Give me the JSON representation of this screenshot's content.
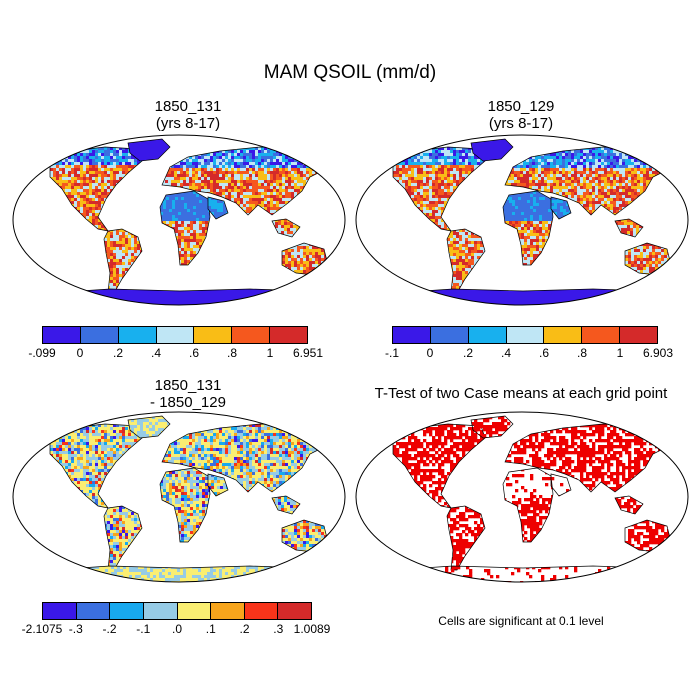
{
  "title": "MAM QSOIL (mm/d)",
  "panels": {
    "top_left": {
      "title_line1": "1850_131",
      "title_line2": "(yrs 8-17)"
    },
    "top_right": {
      "title_line1": "1850_129",
      "title_line2": "(yrs 8-17)"
    },
    "bottom_left": {
      "title_line1": "1850_131",
      "title_line2": "- 1850_129"
    },
    "bottom_right": {
      "title_line1": "T-Test of two Case means at each grid point",
      "note": "Cells are significant at 0.1 level"
    }
  },
  "colorbars": {
    "top_left": {
      "colors": [
        "#3a18e8",
        "#3b6fe0",
        "#18b0ee",
        "#bfe6f5",
        "#f9bd16",
        "#f5581e",
        "#d42a2a"
      ],
      "labels": [
        "-.099",
        "0",
        ".2",
        ".4",
        ".6",
        ".8",
        "1",
        "6.951"
      ]
    },
    "top_right": {
      "colors": [
        "#3a18e8",
        "#3b6fe0",
        "#18b0ee",
        "#bfe6f5",
        "#f9bd16",
        "#f5581e",
        "#d42a2a"
      ],
      "labels": [
        "-.1",
        "0",
        ".2",
        ".4",
        ".6",
        ".8",
        "1",
        "6.903"
      ]
    },
    "bottom_left": {
      "colors": [
        "#3a18e8",
        "#3b6fe0",
        "#18a8ee",
        "#96cbe6",
        "#faee72",
        "#f7a51c",
        "#f8341a",
        "#d42a2a"
      ],
      "labels": [
        "-2.1075",
        "-.3",
        "-.2",
        "-.1",
        ".0",
        ".1",
        ".2",
        ".3",
        "1.0089"
      ]
    }
  },
  "significance_color": "#ee0000"
}
